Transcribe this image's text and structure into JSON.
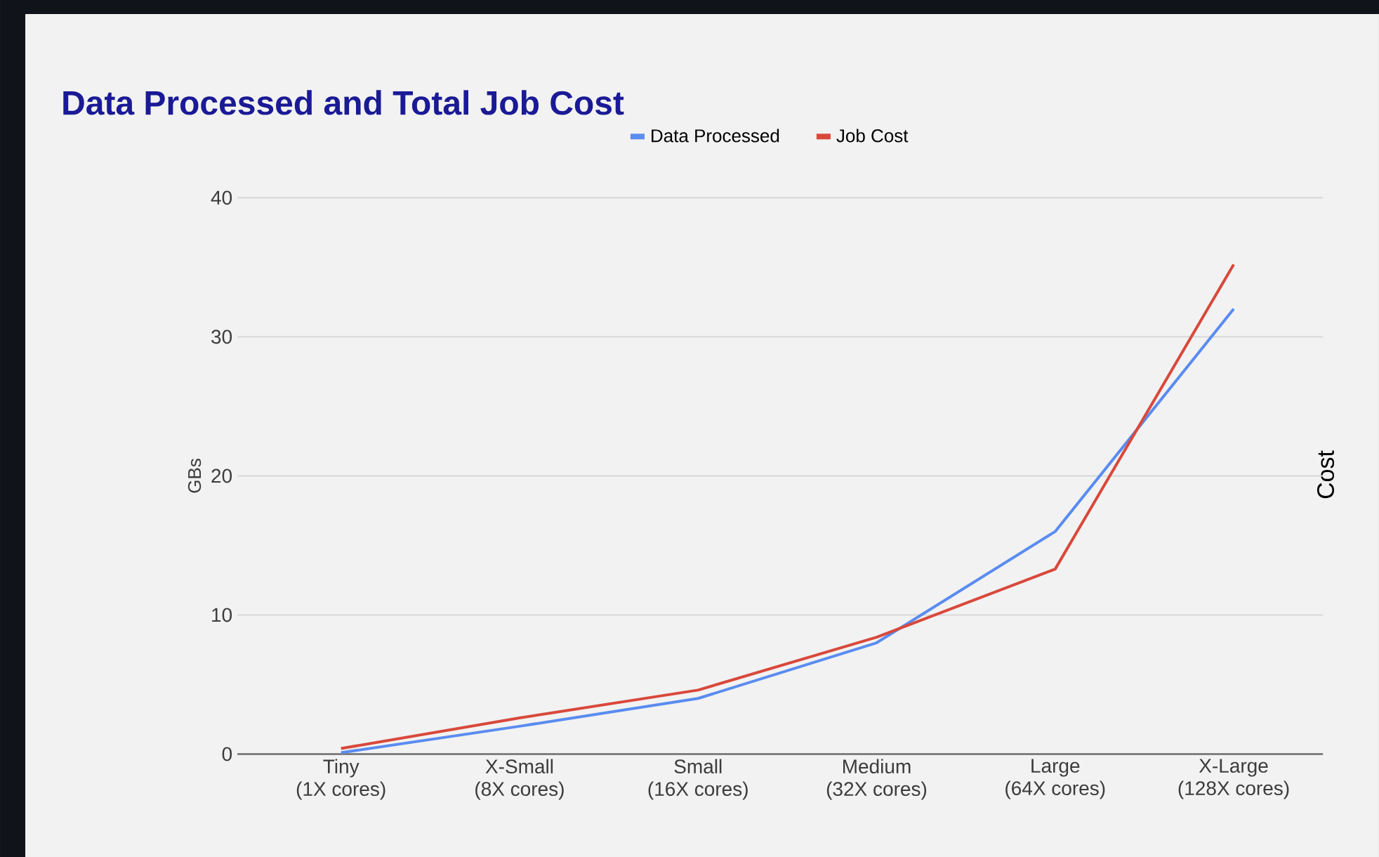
{
  "chart_data": {
    "type": "line",
    "title": "Data Processed and Total Job Cost",
    "ylabel": "GBs",
    "y2label": "Cost",
    "categories": [
      "Tiny\n(1X cores)",
      "X-Small\n(8X cores)",
      "Small\n(16X cores)",
      "Medium\n(32X cores)",
      "Large\n(64X cores)",
      "X-Large\n(128X cores)"
    ],
    "series": [
      {
        "name": "Data Processed",
        "color": "#5a8cf0",
        "values": [
          0.1,
          2,
          4,
          8,
          16,
          32
        ]
      },
      {
        "name": "Job Cost",
        "color": "#d9483b",
        "values": [
          0.4,
          2.6,
          4.6,
          8.4,
          13.3,
          35.2
        ]
      }
    ],
    "ylim": [
      0,
      40
    ],
    "yticks": [
      0,
      10,
      20,
      30,
      40
    ],
    "grid": "y",
    "legend": "top",
    "line_style": "solid",
    "marker": "none"
  }
}
